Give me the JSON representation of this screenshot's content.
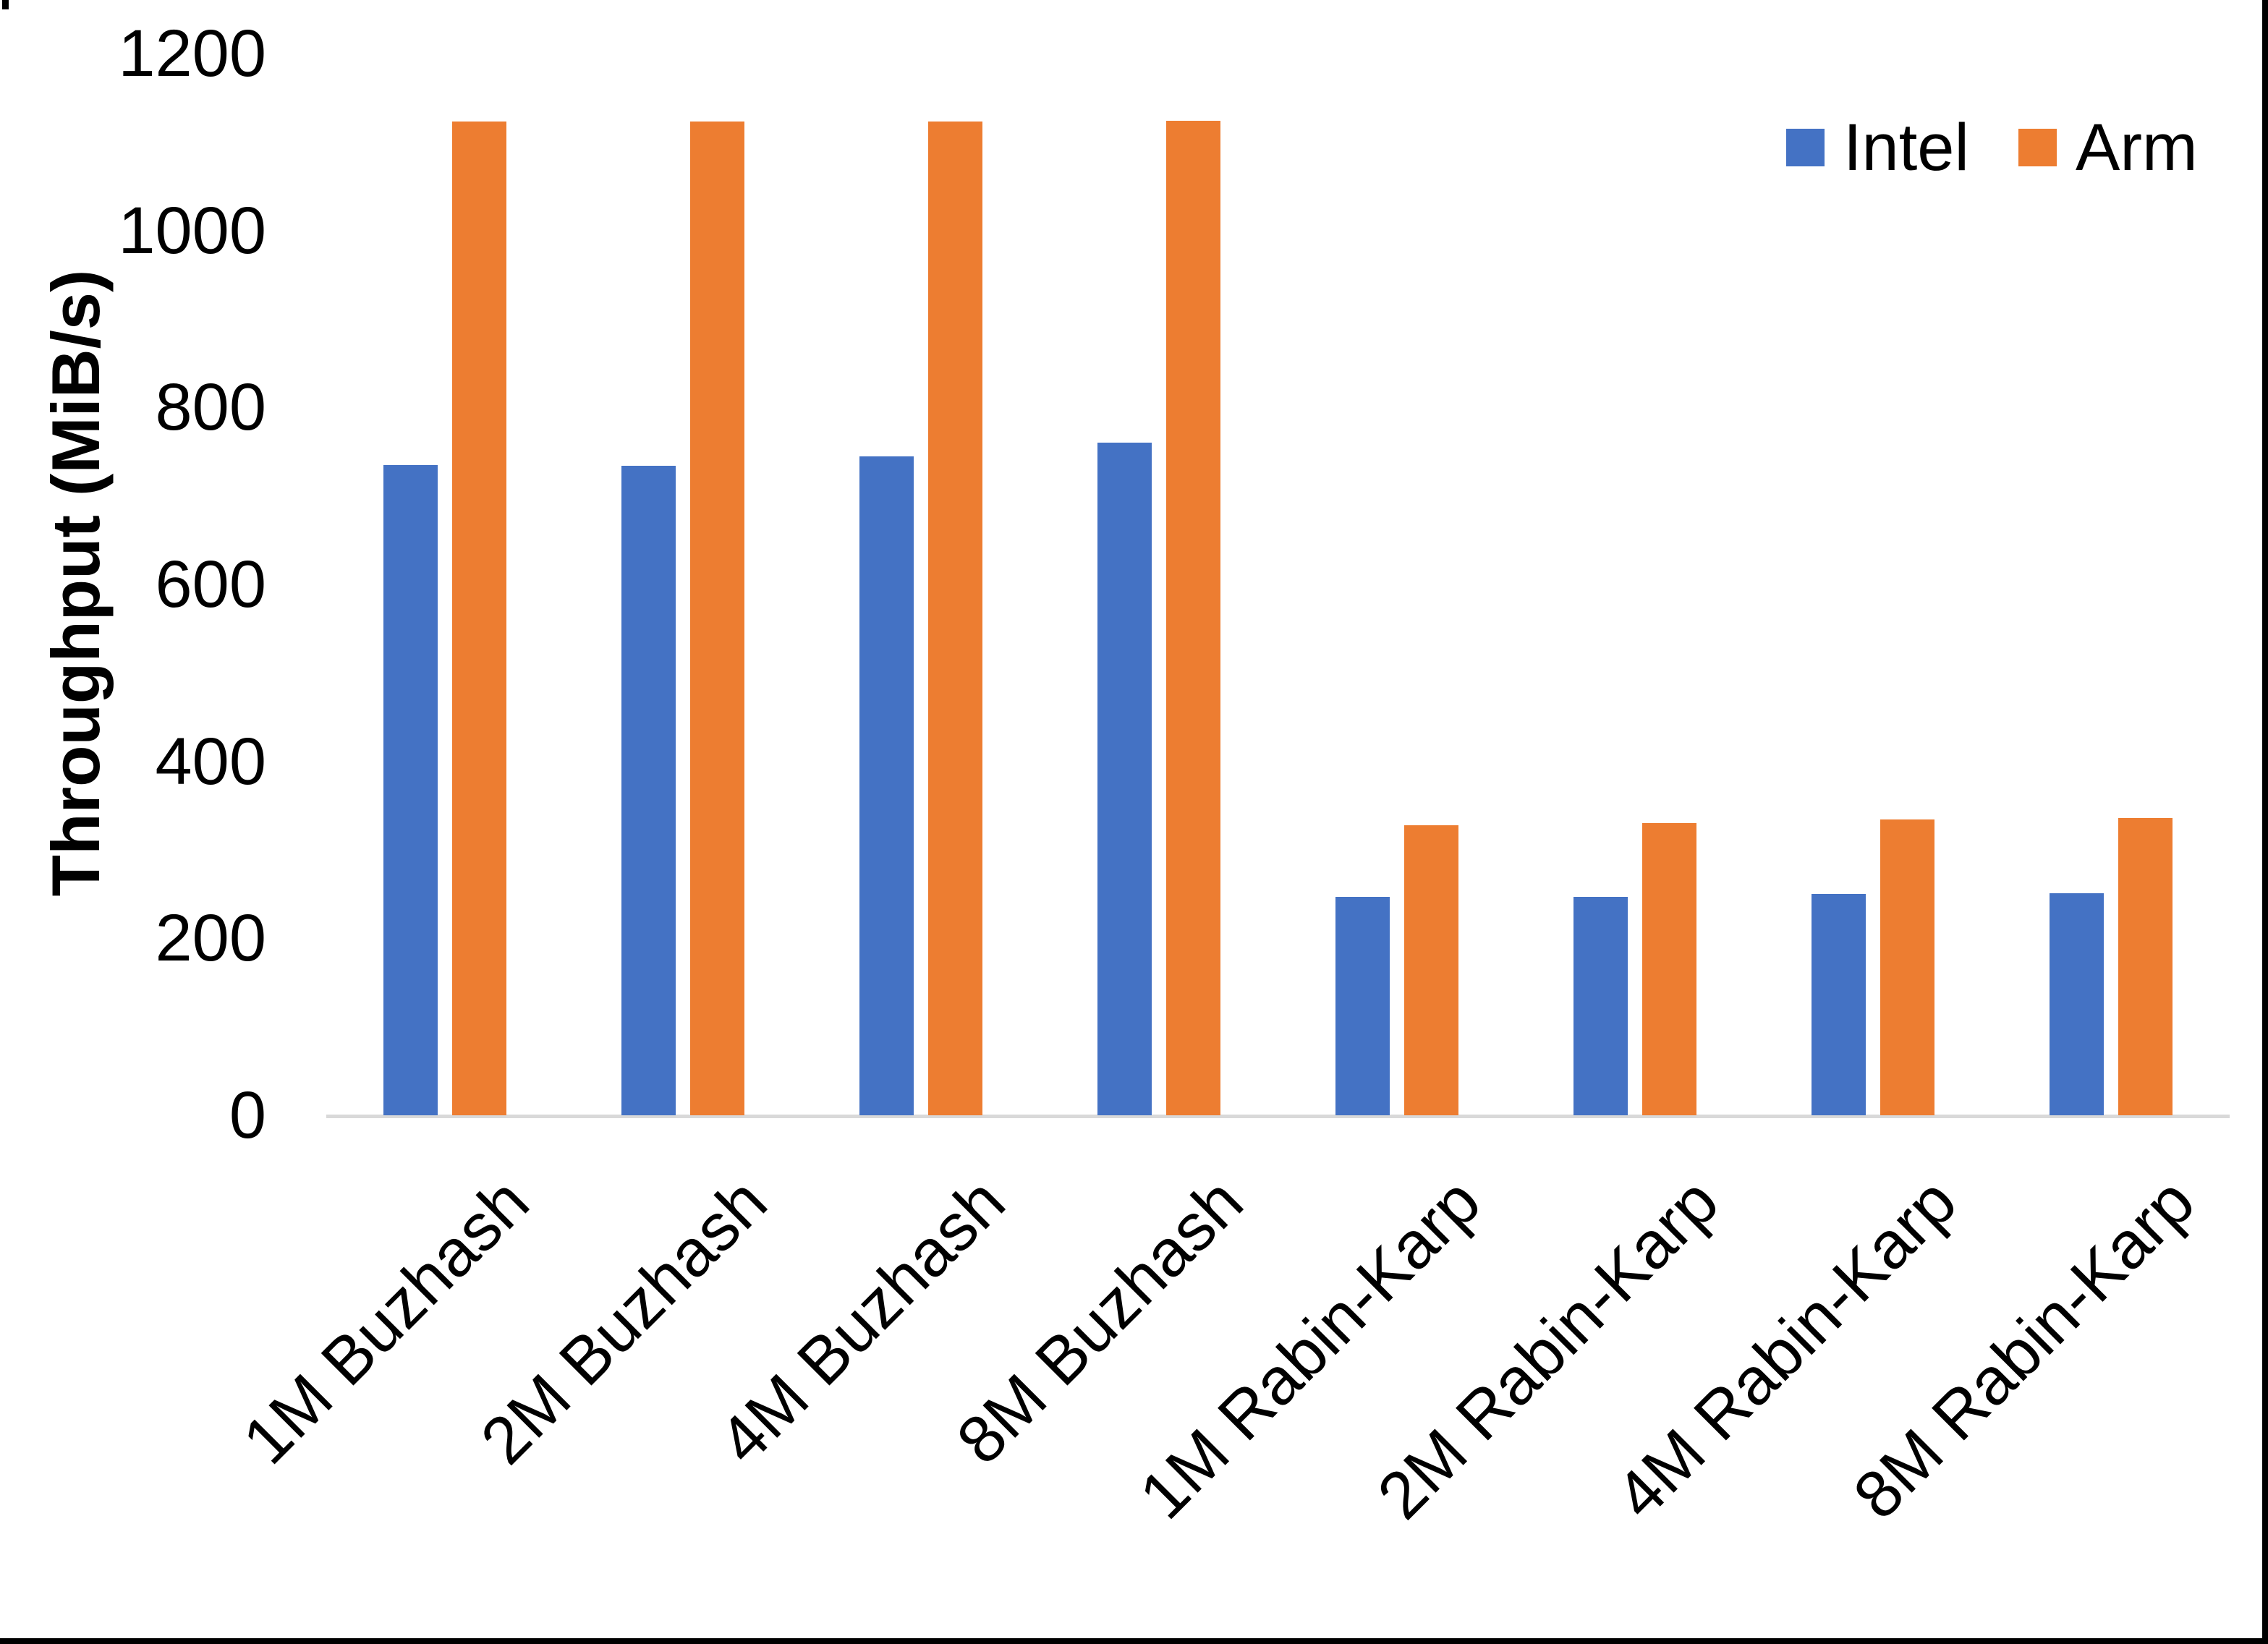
{
  "chart_data": {
    "type": "bar",
    "title": "",
    "xlabel": "",
    "ylabel": "Throughput (MiB/s)",
    "ylim": [
      0,
      1200
    ],
    "yticks": [
      0,
      200,
      400,
      600,
      800,
      1000,
      1200
    ],
    "grid": false,
    "legend_position": "top-right",
    "categories": [
      "1M Buzhash",
      "2M Buzhash",
      "4M Buzhash",
      "8M Buzhash",
      "1M Rabin-Karp",
      "2M Rabin-Karp",
      "4M Rabin-Karp",
      "8M Rabin-Karp"
    ],
    "series": [
      {
        "name": "Intel",
        "color": "#4472C4",
        "values": [
          735,
          734,
          745,
          760,
          247,
          247,
          250,
          251
        ]
      },
      {
        "name": "Arm",
        "color": "#ED7D31",
        "values": [
          1123,
          1123,
          1123,
          1124,
          328,
          330,
          334,
          336
        ]
      }
    ]
  },
  "colors": {
    "background": "#FFFFFF",
    "axis_line": "#D9D9D9",
    "text": "#000000",
    "frame_border": "#000000"
  }
}
